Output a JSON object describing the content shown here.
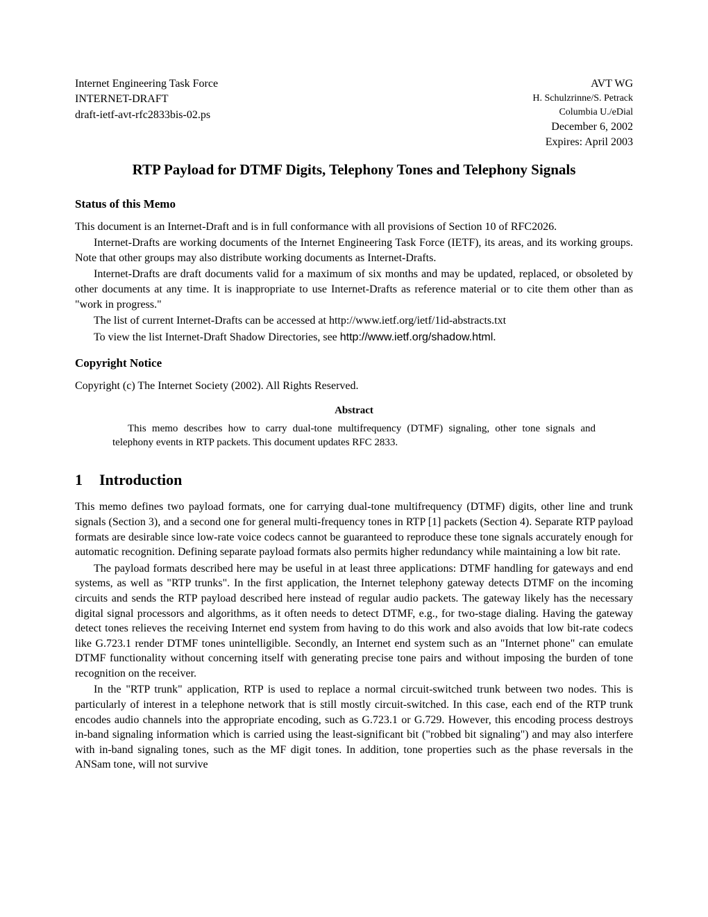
{
  "header": {
    "left": {
      "org": "Internet Engineering Task Force",
      "doctype": "INTERNET-DRAFT",
      "draft_id": "draft-ietf-avt-rfc2833bis-02.ps"
    },
    "right": {
      "wg": "AVT WG",
      "authors": "H. Schulzrinne/S. Petrack",
      "affil": "Columbia U./eDial",
      "date": "December 6, 2002",
      "expires": "Expires: April 2003"
    }
  },
  "title": "RTP Payload for DTMF Digits, Telephony Tones and Telephony Signals",
  "status": {
    "heading": "Status of this Memo",
    "p1": "This document is an Internet-Draft and is in full conformance with all provisions of Section 10 of RFC2026.",
    "p2": "Internet-Drafts are working documents of the Internet Engineering Task Force (IETF), its areas, and its working groups. Note that other groups may also distribute working documents as Internet-Drafts.",
    "p3": "Internet-Drafts are draft documents valid for a maximum of six months and may be updated, replaced, or obsoleted by other documents at any time. It is inappropriate to use Internet-Drafts as reference material or to cite them other than as \"work in progress.\"",
    "p4": "The list of current Internet-Drafts can be accessed at http://www.ietf.org/ietf/1id-abstracts.txt",
    "p5a": "To view the list Internet-Draft Shadow Directories, see ",
    "p5b": "http://www.ietf.org/shadow.html",
    "p5c": "."
  },
  "copyright": {
    "heading": "Copyright Notice",
    "body": "Copyright (c) The Internet Society (2002). All Rights Reserved."
  },
  "abstract": {
    "heading": "Abstract",
    "body": "This memo describes how to carry dual-tone multifrequency (DTMF) signaling, other tone signals and telephony events in RTP packets. This document updates RFC 2833."
  },
  "intro": {
    "number": "1",
    "heading": "Introduction",
    "p1": "This memo defines two payload formats, one for carrying dual-tone multifrequency (DTMF) digits, other line and trunk signals (Section 3), and a second one for general multi-frequency tones in RTP [1] packets (Section 4). Separate RTP payload formats are desirable since low-rate voice codecs cannot be guaranteed to reproduce these tone signals accurately enough for automatic recognition. Defining separate payload formats also permits higher redundancy while maintaining a low bit rate.",
    "p2": "The payload formats described here may be useful in at least three applications: DTMF handling for gateways and end systems, as well as \"RTP trunks\". In the first application, the Internet telephony gateway detects DTMF on the incoming circuits and sends the RTP payload described here instead of regular audio packets. The gateway likely has the necessary digital signal processors and algorithms, as it often needs to detect DTMF, e.g., for two-stage dialing. Having the gateway detect tones relieves the receiving Internet end system from having to do this work and also avoids that low bit-rate codecs like G.723.1 render DTMF tones unintelligible. Secondly, an Internet end system such as an \"Internet phone\" can emulate DTMF functionality without concerning itself with generating precise tone pairs and without imposing the burden of tone recognition on the receiver.",
    "p3": "In the \"RTP trunk\" application, RTP is used to replace a normal circuit-switched trunk between two nodes. This is particularly of interest in a telephone network that is still mostly circuit-switched. In this case, each end of the RTP trunk encodes audio channels into the appropriate encoding, such as G.723.1 or G.729. However, this encoding process destroys in-band signaling information which is carried using the least-significant bit (\"robbed bit signaling\") and may also interfere with in-band signaling tones, such as the MF digit tones. In addition, tone properties such as the phase reversals in the ANSam tone, will not survive"
  }
}
